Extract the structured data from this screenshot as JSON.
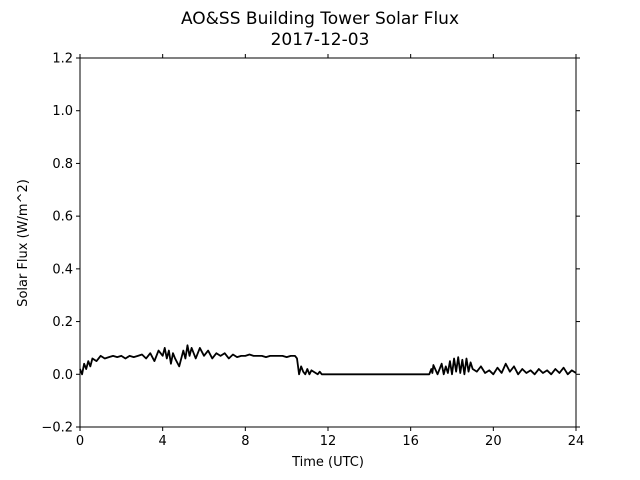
{
  "chart_data": {
    "type": "line",
    "title": "AO&SS Building Tower Solar Flux",
    "subtitle": "2017-12-03",
    "xlabel": "Time (UTC)",
    "ylabel": "Solar Flux (W/m^2)",
    "xlim": [
      0,
      24
    ],
    "ylim": [
      -0.2,
      1.2
    ],
    "xticks": [
      0,
      4,
      8,
      12,
      16,
      20,
      24
    ],
    "xtick_labels": [
      "0",
      "4",
      "8",
      "12",
      "16",
      "20",
      "24"
    ],
    "yticks": [
      -0.2,
      0.0,
      0.2,
      0.4,
      0.6,
      0.8,
      1.0,
      1.2
    ],
    "ytick_labels": [
      "−0.2",
      "0.0",
      "0.2",
      "0.4",
      "0.6",
      "0.8",
      "1.0",
      "1.2"
    ],
    "grid": false,
    "series": [
      {
        "color": "#000000",
        "x": [
          0.0,
          0.1,
          0.2,
          0.3,
          0.4,
          0.5,
          0.6,
          0.8,
          1.0,
          1.2,
          1.4,
          1.6,
          1.8,
          2.0,
          2.2,
          2.4,
          2.6,
          2.8,
          3.0,
          3.2,
          3.4,
          3.6,
          3.8,
          4.0,
          4.1,
          4.2,
          4.3,
          4.4,
          4.5,
          4.6,
          4.8,
          5.0,
          5.1,
          5.2,
          5.3,
          5.4,
          5.6,
          5.8,
          6.0,
          6.2,
          6.4,
          6.6,
          6.8,
          7.0,
          7.2,
          7.4,
          7.6,
          7.8,
          8.0,
          8.2,
          8.4,
          8.6,
          8.8,
          9.0,
          9.2,
          9.4,
          9.6,
          9.8,
          10.0,
          10.2,
          10.4,
          10.5,
          10.6,
          10.7,
          10.8,
          10.9,
          11.0,
          11.1,
          11.2,
          11.5,
          11.6,
          11.7,
          12.0,
          14.0,
          16.0,
          16.9,
          17.0,
          17.05,
          17.1,
          17.3,
          17.5,
          17.6,
          17.7,
          17.8,
          17.9,
          18.0,
          18.1,
          18.2,
          18.3,
          18.4,
          18.5,
          18.6,
          18.7,
          18.8,
          18.9,
          19.0,
          19.2,
          19.4,
          19.6,
          19.8,
          20.0,
          20.2,
          20.4,
          20.6,
          20.8,
          21.0,
          21.2,
          21.4,
          21.6,
          21.8,
          22.0,
          22.2,
          22.4,
          22.6,
          22.8,
          23.0,
          23.2,
          23.4,
          23.6,
          23.8,
          24.0
        ],
        "y": [
          0.02,
          0.0,
          0.04,
          0.02,
          0.05,
          0.03,
          0.06,
          0.05,
          0.07,
          0.06,
          0.065,
          0.07,
          0.065,
          0.07,
          0.06,
          0.07,
          0.065,
          0.07,
          0.075,
          0.06,
          0.08,
          0.05,
          0.09,
          0.07,
          0.1,
          0.06,
          0.09,
          0.04,
          0.08,
          0.06,
          0.03,
          0.09,
          0.06,
          0.11,
          0.07,
          0.1,
          0.06,
          0.1,
          0.07,
          0.09,
          0.06,
          0.08,
          0.07,
          0.08,
          0.06,
          0.075,
          0.065,
          0.07,
          0.07,
          0.075,
          0.07,
          0.07,
          0.07,
          0.065,
          0.07,
          0.07,
          0.07,
          0.07,
          0.065,
          0.07,
          0.07,
          0.06,
          0.0,
          0.03,
          0.01,
          0.0,
          0.02,
          0.0,
          0.015,
          0.0,
          0.01,
          0.0,
          0.0,
          0.0,
          0.0,
          0.0,
          0.02,
          0.005,
          0.035,
          0.0,
          0.04,
          0.0,
          0.03,
          0.005,
          0.05,
          0.0,
          0.06,
          0.01,
          0.065,
          0.005,
          0.055,
          0.0,
          0.06,
          0.01,
          0.045,
          0.02,
          0.01,
          0.03,
          0.005,
          0.015,
          0.0,
          0.025,
          0.005,
          0.04,
          0.01,
          0.03,
          0.0,
          0.02,
          0.005,
          0.015,
          0.0,
          0.02,
          0.005,
          0.015,
          0.0,
          0.02,
          0.005,
          0.025,
          0.0,
          0.015,
          0.005
        ]
      }
    ]
  }
}
